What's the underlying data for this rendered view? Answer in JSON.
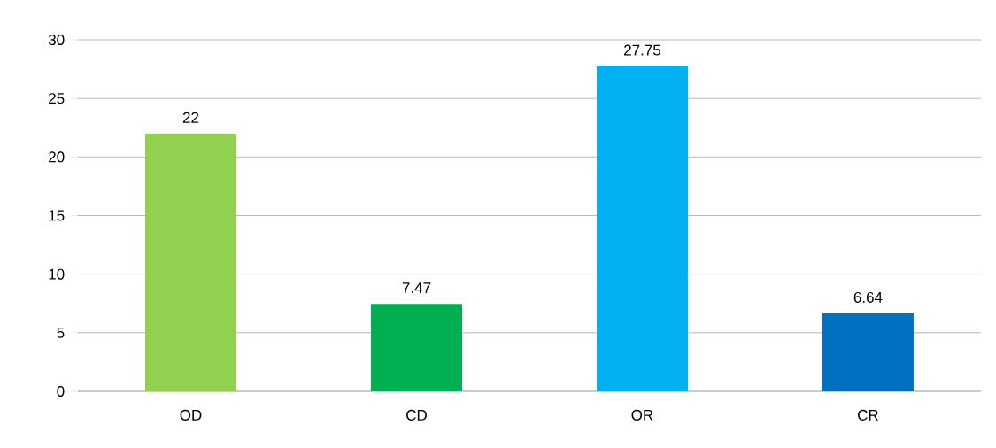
{
  "chart_data": {
    "type": "bar",
    "categories": [
      "OD",
      "CD",
      "OR",
      "CR"
    ],
    "values": [
      22,
      7.47,
      27.75,
      6.64
    ],
    "colors": [
      "#92d050",
      "#00b050",
      "#00b0f0",
      "#0070c0"
    ],
    "ylim": [
      0,
      30
    ],
    "yticks": [
      0,
      5,
      10,
      15,
      20,
      25,
      30
    ],
    "grid": "y",
    "data_labels": true
  }
}
